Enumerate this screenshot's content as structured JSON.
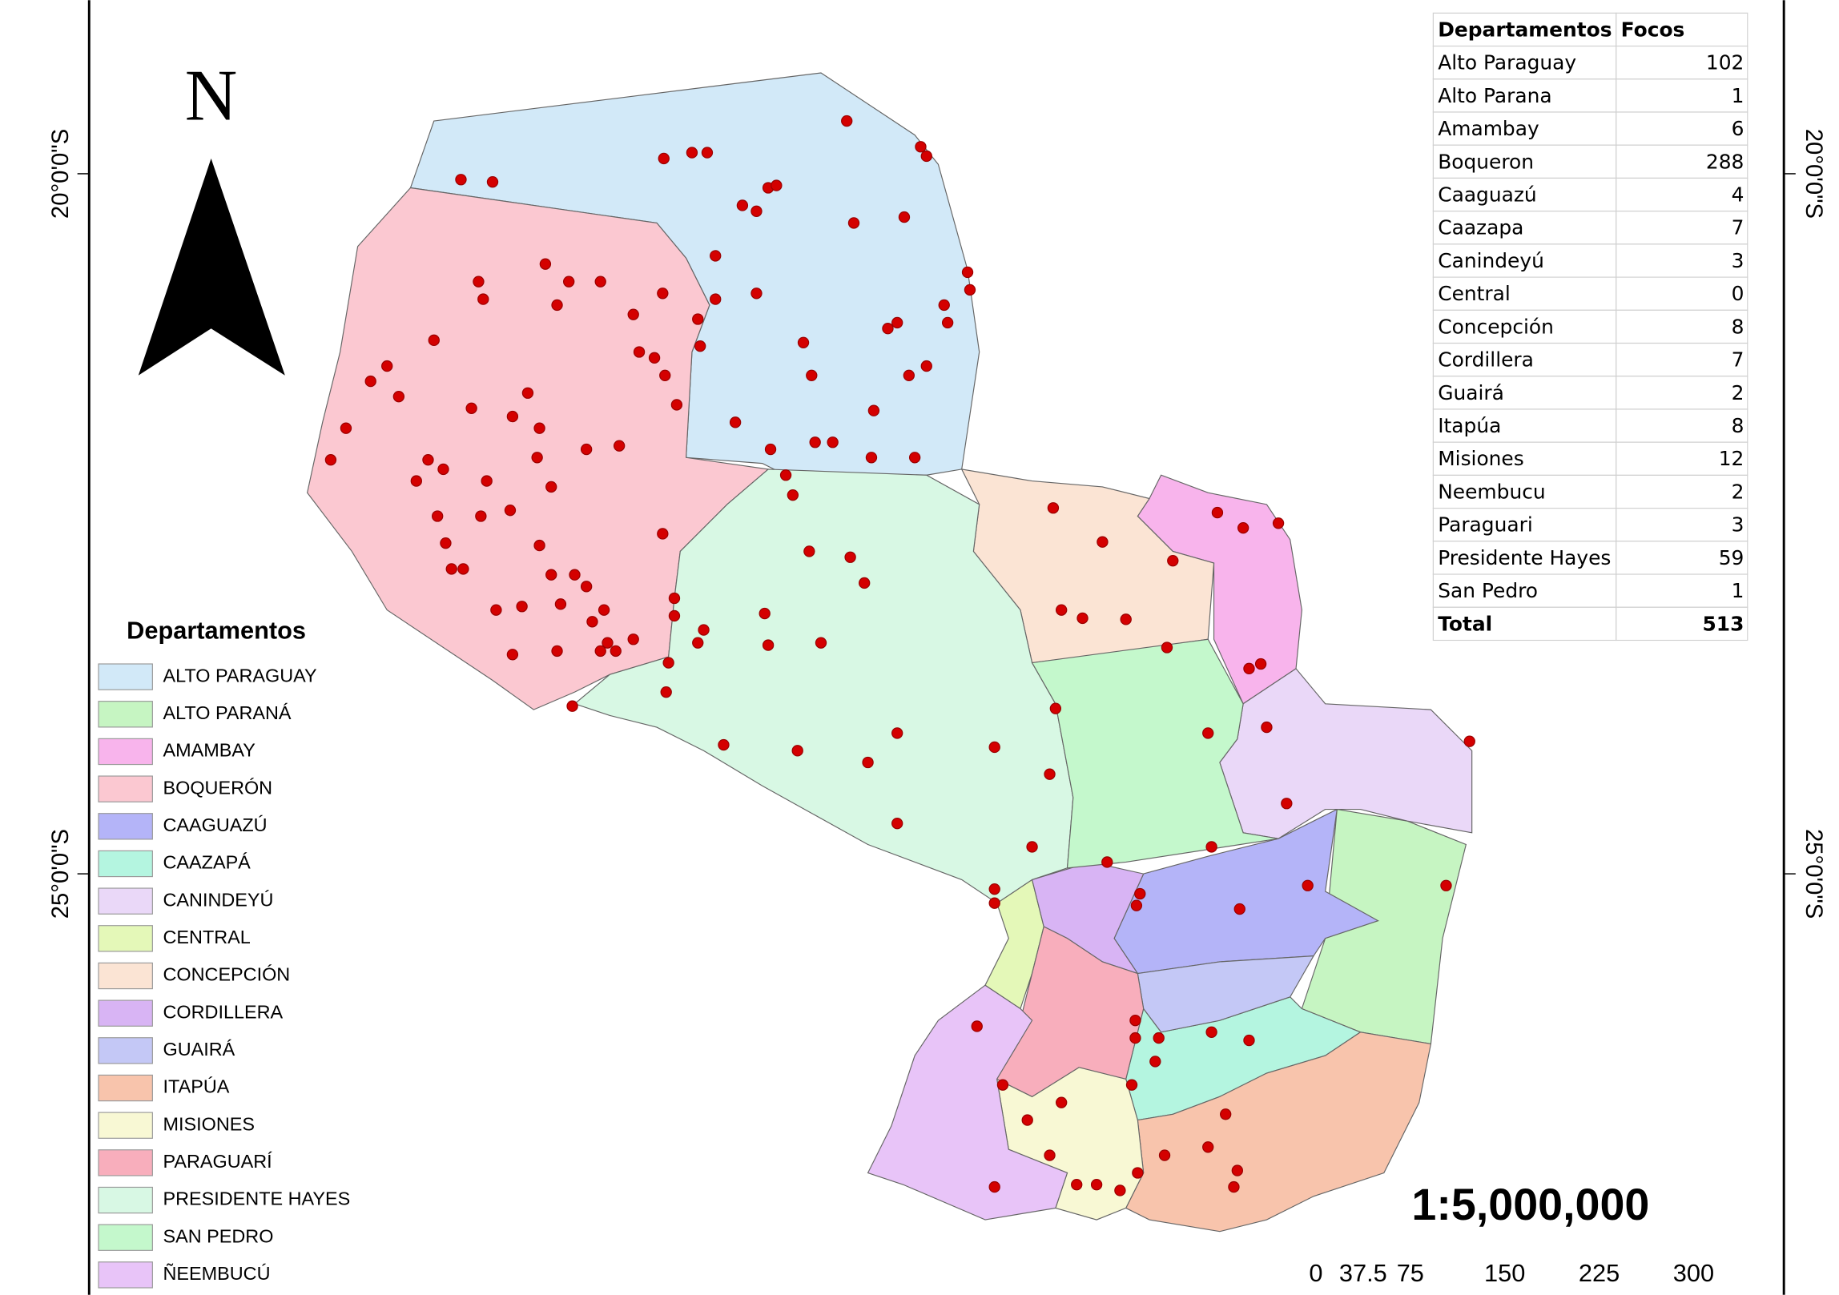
{
  "north": "N",
  "latitude_labels": [
    "20°0'0\"S",
    "25°0'0\"S"
  ],
  "legend": {
    "title": "Departamentos",
    "items": [
      {
        "label": "ALTO PARAGUAY",
        "color": "#d2e9f8"
      },
      {
        "label": "ALTO PARANÁ",
        "color": "#c6f5c2"
      },
      {
        "label": "AMAMBAY",
        "color": "#f8b4ec"
      },
      {
        "label": "BOQUERÓN",
        "color": "#fbc8d1"
      },
      {
        "label": "CAAGUAZÚ",
        "color": "#b4b4f8"
      },
      {
        "label": "CAAZAPÁ",
        "color": "#b4f5e0"
      },
      {
        "label": "CANINDEYÚ",
        "color": "#ead8f8"
      },
      {
        "label": "CENTRAL",
        "color": "#e4f8b8"
      },
      {
        "label": "CONCEPCIÓN",
        "color": "#fbe4d4"
      },
      {
        "label": "CORDILLERA",
        "color": "#d8b4f4"
      },
      {
        "label": "GUAIRÁ",
        "color": "#c4c8f6"
      },
      {
        "label": "ITAPÚA",
        "color": "#f8c4ac"
      },
      {
        "label": "MISIONES",
        "color": "#f8f8d4"
      },
      {
        "label": "PARAGUARÍ",
        "color": "#f8aebc"
      },
      {
        "label": "PRESIDENTE HAYES",
        "color": "#d8f8e4"
      },
      {
        "label": "SAN PEDRO",
        "color": "#c4f8cc"
      },
      {
        "label": "ÑEEMBUCÚ",
        "color": "#e8c4f8"
      }
    ]
  },
  "table": {
    "columns": [
      "Departamentos",
      "Focos"
    ],
    "rows": [
      [
        "Alto Paraguay",
        102
      ],
      [
        "Alto Parana",
        1
      ],
      [
        "Amambay",
        6
      ],
      [
        "Boqueron",
        288
      ],
      [
        "Caaguazú",
        4
      ],
      [
        "Caazapa",
        7
      ],
      [
        "Canindeyú",
        3
      ],
      [
        "Central",
        0
      ],
      [
        "Concepción",
        8
      ],
      [
        "Cordillera",
        7
      ],
      [
        "Guairá",
        2
      ],
      [
        "Itapúa",
        8
      ],
      [
        "Misiones",
        12
      ],
      [
        "Neembucu",
        2
      ],
      [
        "Paraguari",
        3
      ],
      [
        "Presidente Hayes",
        59
      ],
      [
        "San Pedro",
        1
      ]
    ],
    "total": [
      "Total",
      513
    ]
  },
  "scale": {
    "ratio": "1:5,000,000",
    "bar_labels": [
      0,
      37.5,
      75,
      150,
      225,
      300
    ]
  }
}
